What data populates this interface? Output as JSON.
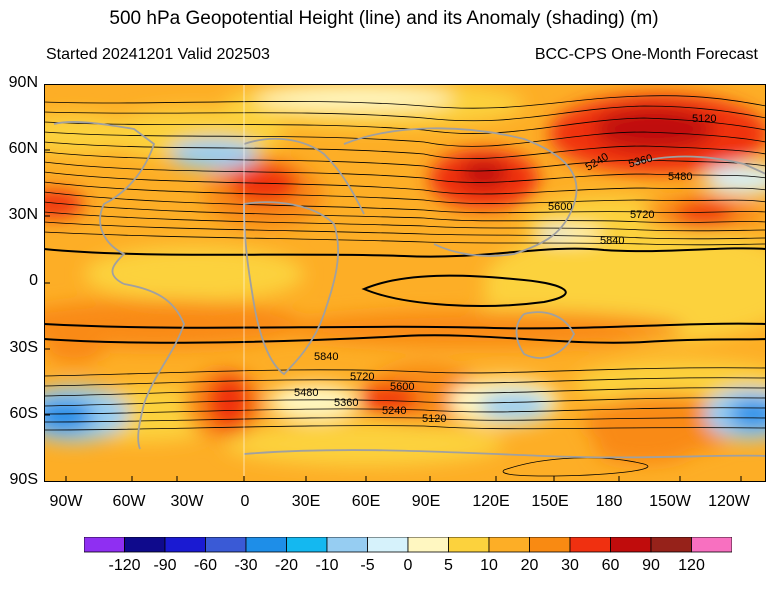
{
  "header": {
    "title": "500 hPa Geopotential Height (line) and its Anomaly (shading) (m)",
    "started": "Started 20241201  Valid 202503",
    "source": "BCC-CPS One-Month Forecast"
  },
  "map": {
    "lat_labels": [
      "90N",
      "60N",
      "30N",
      "0",
      "30S",
      "60S",
      "90S"
    ],
    "lon_labels": [
      "90W",
      "60W",
      "30W",
      "0",
      "30E",
      "60E",
      "90E",
      "120E",
      "150E",
      "180",
      "150W",
      "120W"
    ],
    "contour_labels": [
      "5120",
      "5240",
      "5360",
      "5480",
      "5600",
      "5720",
      "5840",
      "5840",
      "5720",
      "5600",
      "5480",
      "5360",
      "5240",
      "5120"
    ]
  },
  "colorbar": {
    "labels": [
      "-120",
      "-90",
      "-60",
      "-30",
      "-20",
      "-10",
      "-5",
      "0",
      "5",
      "10",
      "20",
      "30",
      "60",
      "90",
      "120"
    ],
    "colors": [
      "#8f2ff2",
      "#0f0a8c",
      "#1a1ad2",
      "#3a5ad6",
      "#1e8ee8",
      "#14b8f0",
      "#96cdf2",
      "#d6f2fb",
      "#fff7c1",
      "#fcd23d",
      "#fdae26",
      "#f98a12",
      "#f03010",
      "#c00c0c",
      "#96221a",
      "#f870c0"
    ]
  }
}
